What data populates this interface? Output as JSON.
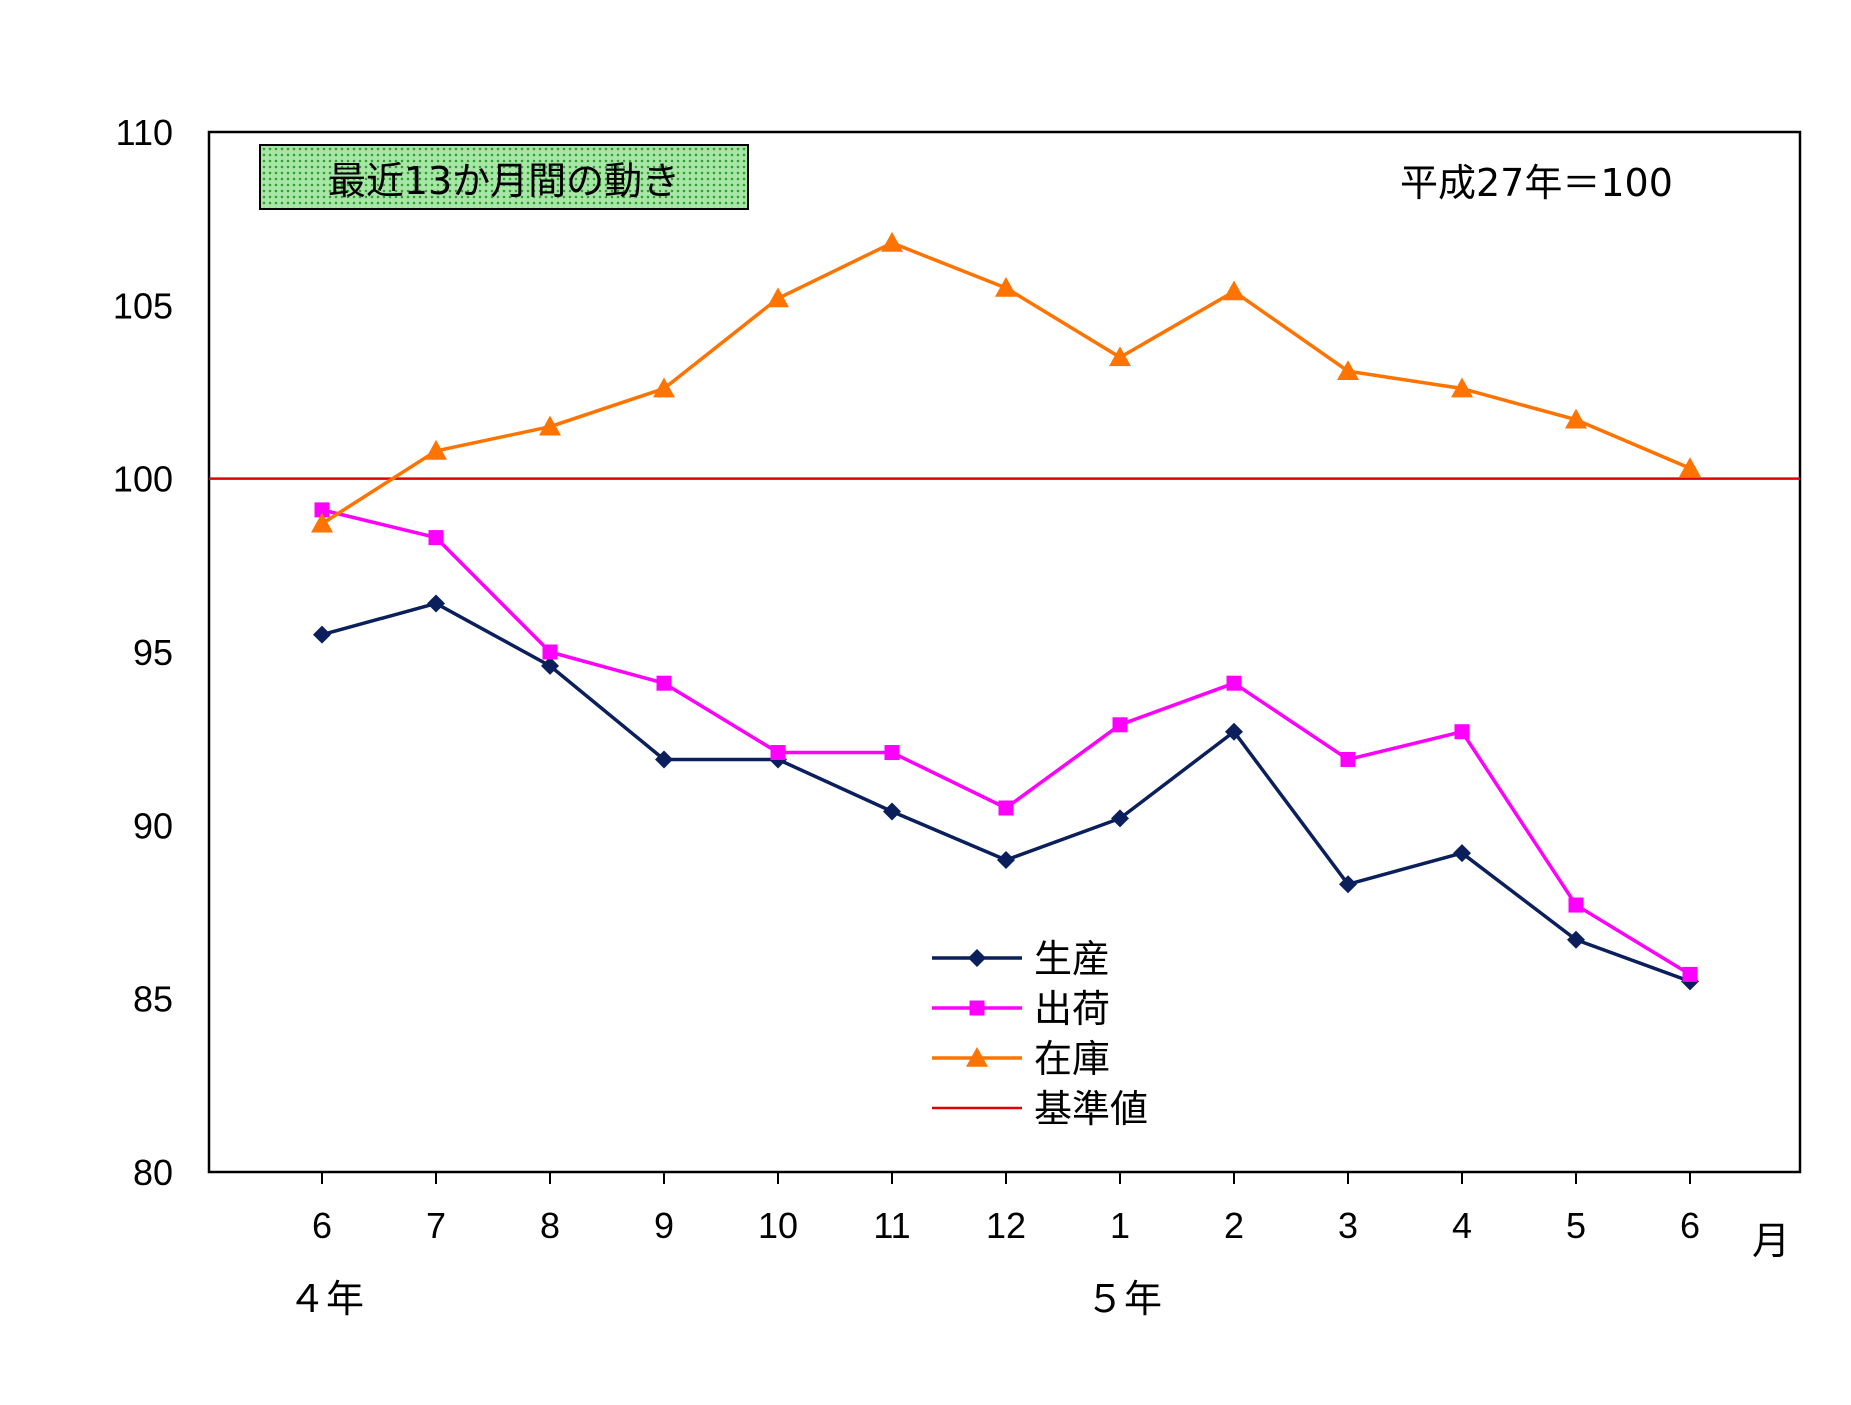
{
  "chart_data": {
    "type": "line",
    "title": "最近13か月間の動き",
    "base_note": "平成27年＝100",
    "categories": [
      "6",
      "7",
      "8",
      "9",
      "10",
      "11",
      "12",
      "1",
      "2",
      "3",
      "4",
      "5",
      "6"
    ],
    "x_unit": "月",
    "year_labels": [
      {
        "text": "４年",
        "at_index": 0
      },
      {
        "text": "５年",
        "at_index": 7
      }
    ],
    "ylim": [
      80,
      110
    ],
    "yticks": [
      80,
      85,
      90,
      95,
      100,
      105,
      110
    ],
    "baseline": {
      "name": "基準値",
      "value": 100,
      "color": "#e00000"
    },
    "series": [
      {
        "name": "生産",
        "color": "#0a1f5c",
        "marker": "diamond",
        "values": [
          95.5,
          96.4,
          94.6,
          91.9,
          91.9,
          90.4,
          89.0,
          90.2,
          92.7,
          88.3,
          89.2,
          86.7,
          85.5
        ]
      },
      {
        "name": "出荷",
        "color": "#ff00ff",
        "marker": "square",
        "values": [
          99.1,
          98.3,
          95.0,
          94.1,
          92.1,
          92.1,
          90.5,
          92.9,
          94.1,
          91.9,
          92.7,
          87.7,
          85.7
        ]
      },
      {
        "name": "在庫",
        "color": "#ff7300",
        "marker": "triangle",
        "values": [
          98.7,
          100.8,
          101.5,
          102.6,
          105.2,
          106.8,
          105.5,
          103.5,
          105.4,
          103.1,
          102.6,
          101.7,
          100.3
        ]
      }
    ],
    "legend_position": "center-bottom",
    "grid": false
  }
}
